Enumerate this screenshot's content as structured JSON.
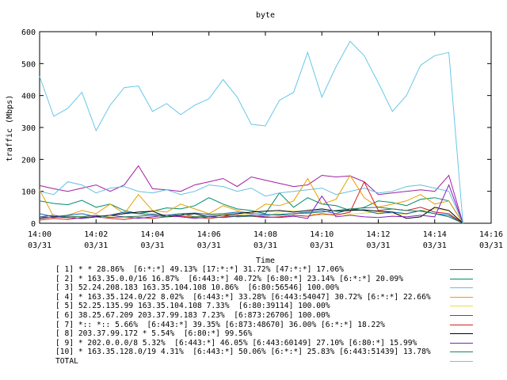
{
  "chart_data": {
    "type": "line",
    "title": "byte",
    "xlabel": "Time",
    "ylabel": "traffic (Mbps)",
    "ylim": [
      0,
      600
    ],
    "yticks": [
      "0",
      "100",
      "200",
      "300",
      "400",
      "500",
      "600"
    ],
    "xticks": [
      {
        "time": "14:00",
        "date": "03/31"
      },
      {
        "time": "14:02",
        "date": "03/31"
      },
      {
        "time": "14:04",
        "date": "03/31"
      },
      {
        "time": "14:06",
        "date": "03/31"
      },
      {
        "time": "14:08",
        "date": "03/31"
      },
      {
        "time": "14:10",
        "date": "03/31"
      },
      {
        "time": "14:12",
        "date": "03/31"
      },
      {
        "time": "14:14",
        "date": "03/31"
      },
      {
        "time": "14:16",
        "date": "03/31"
      }
    ],
    "xrange_minutes": [
      0,
      16
    ],
    "x_minutes": [
      0,
      0.5,
      1,
      1.5,
      2,
      2.5,
      3,
      3.5,
      4,
      4.5,
      5,
      5.5,
      6,
      6.5,
      7,
      7.5,
      8,
      8.5,
      9,
      9.5,
      10,
      10.5,
      11,
      11.5,
      12,
      12.5,
      13,
      13.5,
      14,
      14.5,
      15
    ],
    "grid": false,
    "legend_position": "bottom",
    "series": [
      {
        "name": "[ 1] * * 28.86%  [6:*:*] 49.13% [17:*:*] 31.72% [47:*:*] 17.06%",
        "color": "#a020a0",
        "values": [
          118,
          108,
          100,
          110,
          120,
          100,
          120,
          180,
          108,
          105,
          100,
          120,
          130,
          140,
          115,
          145,
          135,
          125,
          115,
          120,
          150,
          145,
          148,
          130,
          90,
          95,
          100,
          105,
          100,
          150,
          0
        ]
      },
      {
        "name": "[ 2] * 163.35.0.0/16 16.87%  [6:443:*] 40.72% [6:80:*] 23.14% [6:*:*] 20.09%",
        "color": "#008b6b",
        "values": [
          70,
          62,
          58,
          72,
          50,
          60,
          40,
          30,
          38,
          48,
          45,
          55,
          80,
          60,
          45,
          40,
          30,
          95,
          50,
          80,
          60,
          55,
          40,
          50,
          70,
          65,
          55,
          75,
          80,
          70,
          0
        ]
      },
      {
        "name": "[ 3] 52.24.208.183 163.35.104.108 10.86%  [6:80:56546] 100.00%",
        "color": "#66c0e0",
        "values": [
          100,
          90,
          130,
          120,
          95,
          110,
          115,
          100,
          95,
          105,
          90,
          100,
          120,
          115,
          100,
          110,
          85,
          95,
          100,
          105,
          110,
          90,
          100,
          110,
          95,
          100,
          115,
          120,
          110,
          100,
          0
        ]
      },
      {
        "name": "[ 4] * 163.35.124.0/22 8.02%  [6:443:*] 33.28% [6:443:54047] 30.72% [6:*:*] 22.66%",
        "color": "#e8a000",
        "values": [
          105,
          20,
          25,
          40,
          30,
          60,
          30,
          90,
          40,
          35,
          60,
          45,
          30,
          55,
          40,
          30,
          60,
          55,
          70,
          140,
          60,
          75,
          150,
          80,
          50,
          60,
          70,
          90,
          60,
          70,
          0
        ]
      },
      {
        "name": "[ 5] 52.25.135.99 163.35.104.108 7.33%  [6:80:39114] 100.00%",
        "color": "#e8e040",
        "values": [
          15,
          20,
          18,
          22,
          25,
          20,
          18,
          22,
          30,
          25,
          20,
          22,
          25,
          28,
          30,
          25,
          20,
          35,
          40,
          30,
          25,
          30,
          28,
          32,
          35,
          30,
          28,
          40,
          45,
          40,
          0
        ]
      },
      {
        "name": "[ 6] 38.25.67.209 203.37.99.183 7.23%  [6:873:26706] 100.00%",
        "color": "#1060c0",
        "values": [
          30,
          20,
          25,
          30,
          20,
          25,
          35,
          30,
          28,
          25,
          30,
          32,
          28,
          30,
          35,
          30,
          28,
          25,
          30,
          35,
          40,
          30,
          45,
          40,
          30,
          35,
          30,
          40,
          30,
          25,
          0
        ]
      },
      {
        "name": "[ 7] *:: *:: 5.66%  [6:443:*] 39.35% [6:873:48670] 36.00% [6:*:*] 18.22%",
        "color": "#d02020",
        "values": [
          10,
          15,
          12,
          18,
          20,
          15,
          12,
          18,
          15,
          20,
          22,
          18,
          15,
          20,
          25,
          22,
          18,
          20,
          25,
          22,
          30,
          25,
          35,
          130,
          40,
          45,
          40,
          50,
          35,
          30,
          0
        ]
      },
      {
        "name": "[ 8] 203.37.99.172 * 5.54%  [6:80:*] 99.56%",
        "color": "#000000",
        "values": [
          15,
          20,
          18,
          15,
          20,
          25,
          30,
          35,
          38,
          20,
          25,
          30,
          20,
          25,
          30,
          35,
          38,
          40,
          35,
          40,
          45,
          38,
          40,
          42,
          38,
          35,
          15,
          20,
          50,
          40,
          0
        ]
      },
      {
        "name": "[ 9] * 202.0.0.0/8 5.32%  [6:443:*] 46.05% [6:443:60149] 27.10% [6:80:*] 15.99%",
        "color": "#8020c0",
        "values": [
          20,
          25,
          18,
          15,
          22,
          25,
          20,
          15,
          20,
          25,
          20,
          15,
          20,
          18,
          22,
          25,
          20,
          18,
          22,
          15,
          85,
          20,
          25,
          20,
          18,
          22,
          20,
          25,
          20,
          120,
          0
        ]
      },
      {
        "name": "[10] * 163.35.128.0/19 4.31%  [6:443:*] 50.06% [6:*:*] 25.83% [6:443:51439] 13.78%",
        "color": "#208060",
        "values": [
          20,
          18,
          22,
          20,
          25,
          18,
          20,
          22,
          25,
          20,
          30,
          20,
          22,
          25,
          20,
          22,
          25,
          28,
          30,
          32,
          35,
          40,
          45,
          48,
          50,
          45,
          40,
          38,
          30,
          20,
          0
        ]
      },
      {
        "name": "TOTAL",
        "color": "#66c8e8",
        "values": [
          460,
          335,
          360,
          410,
          290,
          370,
          425,
          430,
          350,
          375,
          340,
          370,
          390,
          450,
          395,
          310,
          305,
          385,
          410,
          535,
          395,
          490,
          570,
          525,
          440,
          350,
          400,
          495,
          525,
          535,
          0
        ]
      }
    ]
  }
}
